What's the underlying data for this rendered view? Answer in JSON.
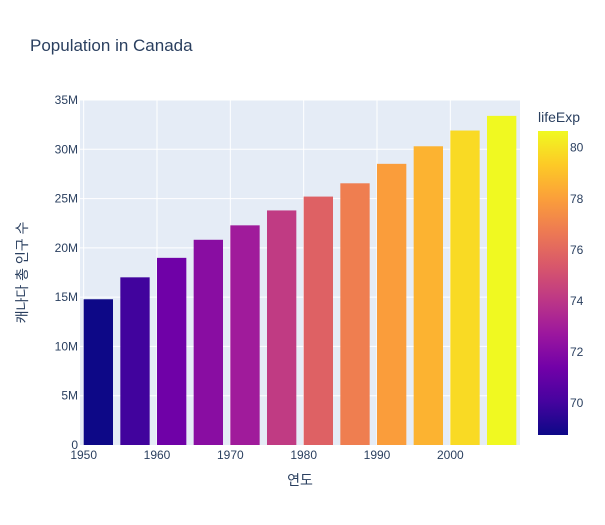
{
  "chart_data": {
    "type": "bar",
    "title": "Population in Canada",
    "xlabel": "연도",
    "ylabel": "캐나다 총 인구 수",
    "x": [
      1952,
      1957,
      1962,
      1967,
      1972,
      1977,
      1982,
      1987,
      1992,
      1997,
      2002,
      2007
    ],
    "values": [
      14785584,
      17010154,
      18985849,
      20819767,
      22284500,
      23796400,
      25201900,
      26549700,
      28523502,
      30305843,
      31902268,
      33390141
    ],
    "lifeExp": [
      68.75,
      69.96,
      71.3,
      72.13,
      72.88,
      74.21,
      75.76,
      76.86,
      77.95,
      78.61,
      79.77,
      80.653
    ],
    "x_ticks": [
      "1950",
      "1960",
      "1970",
      "1980",
      "1990",
      "2000"
    ],
    "x_tick_values": [
      1950,
      1960,
      1970,
      1980,
      1990,
      2000
    ],
    "xlim": [
      1949.5,
      2009.5
    ],
    "y_ticks": [
      "0",
      "5M",
      "10M",
      "15M",
      "20M",
      "25M",
      "30M",
      "35M"
    ],
    "y_tick_values": [
      0,
      5000000,
      10000000,
      15000000,
      20000000,
      25000000,
      30000000,
      35000000
    ],
    "ylim": [
      0,
      35000000
    ],
    "colorbar": {
      "title": "lifeExp",
      "ticks": [
        "70",
        "72",
        "74",
        "76",
        "78",
        "80"
      ],
      "tick_values": [
        70,
        72,
        74,
        76,
        78,
        80
      ],
      "range": [
        68.75,
        80.653
      ]
    },
    "colors": {
      "plot_bg": "#e5ecf6",
      "grid": "#ffffff",
      "text": "#2a3f5f",
      "scale": [
        "#0d0887",
        "#46039f",
        "#7201a8",
        "#9c179e",
        "#bd3786",
        "#d8576b",
        "#ed7953",
        "#fb9f3a",
        "#fdca26",
        "#f0f921"
      ]
    }
  }
}
